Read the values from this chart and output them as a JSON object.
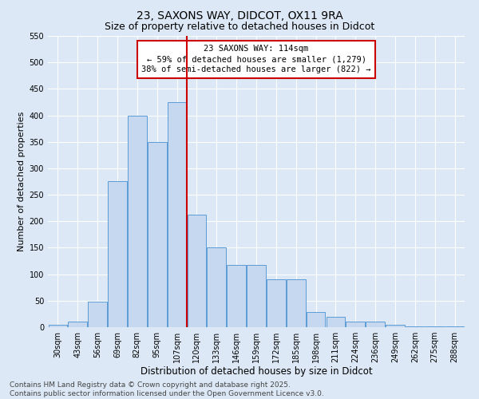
{
  "title1": "23, SAXONS WAY, DIDCOT, OX11 9RA",
  "title2": "Size of property relative to detached houses in Didcot",
  "xlabel": "Distribution of detached houses by size in Didcot",
  "ylabel": "Number of detached properties",
  "categories": [
    "30sqm",
    "43sqm",
    "56sqm",
    "69sqm",
    "82sqm",
    "95sqm",
    "107sqm",
    "120sqm",
    "133sqm",
    "146sqm",
    "159sqm",
    "172sqm",
    "185sqm",
    "198sqm",
    "211sqm",
    "224sqm",
    "236sqm",
    "249sqm",
    "262sqm",
    "275sqm",
    "288sqm"
  ],
  "values": [
    5,
    10,
    48,
    275,
    400,
    350,
    425,
    213,
    150,
    118,
    118,
    90,
    90,
    28,
    20,
    10,
    10,
    5,
    2,
    2,
    2
  ],
  "bar_color": "#c5d8f0",
  "bar_edge_color": "#5b9bd5",
  "vline_index": 6.52,
  "vline_color": "#cc0000",
  "annotation_title": "23 SAXONS WAY: 114sqm",
  "annotation_line1": "← 59% of detached houses are smaller (1,279)",
  "annotation_line2": "38% of semi-detached houses are larger (822) →",
  "annotation_box_color": "#ffffff",
  "annotation_box_edge": "#cc0000",
  "ylim": [
    0,
    550
  ],
  "yticks": [
    0,
    50,
    100,
    150,
    200,
    250,
    300,
    350,
    400,
    450,
    500,
    550
  ],
  "background_color": "#dce8f5",
  "footer1": "Contains HM Land Registry data © Crown copyright and database right 2025.",
  "footer2": "Contains public sector information licensed under the Open Government Licence v3.0.",
  "title1_fontsize": 10,
  "title2_fontsize": 9,
  "xlabel_fontsize": 8.5,
  "ylabel_fontsize": 8,
  "tick_fontsize": 7,
  "annotation_fontsize": 7.5,
  "footer_fontsize": 6.5
}
